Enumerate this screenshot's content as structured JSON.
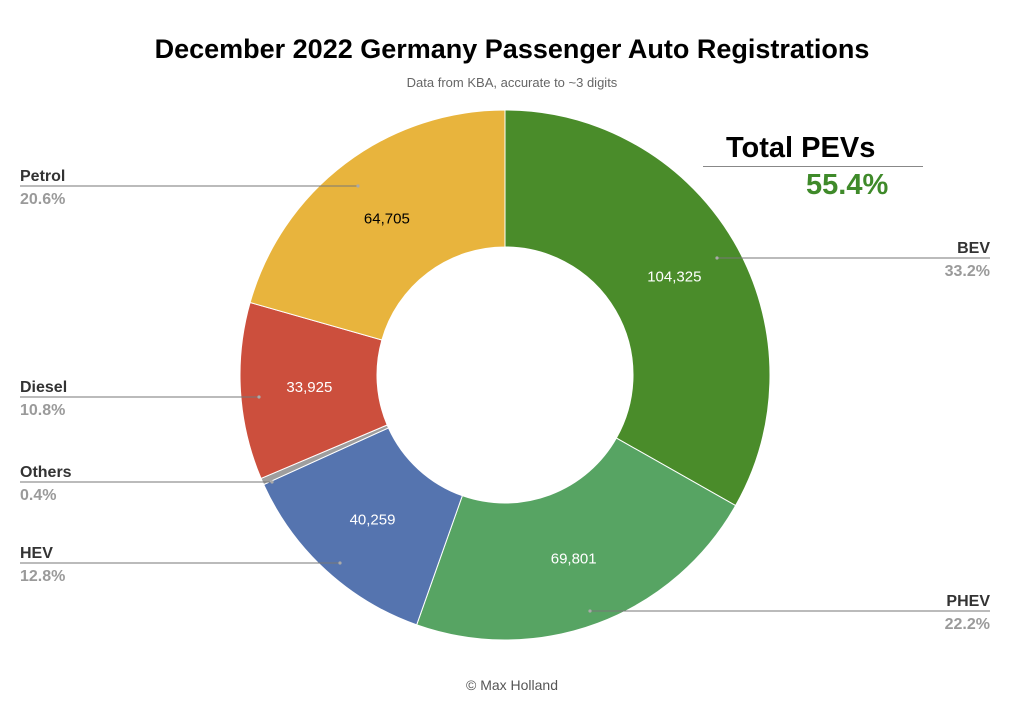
{
  "chart_data": {
    "type": "pie",
    "variant": "donut",
    "title": "December 2022 Germany Passenger Auto Registrations",
    "subtitle": "Data from KBA, accurate to ~3 digits",
    "legend": "none",
    "slices": [
      {
        "name": "BEV",
        "value": 104325,
        "value_label": "104,325",
        "percent": "33.2%",
        "color": "#4a8c2a",
        "label_color": "#ffffff"
      },
      {
        "name": "PHEV",
        "value": 69801,
        "value_label": "69,801",
        "percent": "22.2%",
        "color": "#57a463",
        "label_color": "#ffffff"
      },
      {
        "name": "HEV",
        "value": 40259,
        "value_label": "40,259",
        "percent": "12.8%",
        "color": "#5574af",
        "label_color": "#ffffff"
      },
      {
        "name": "Others",
        "value": 1250,
        "value_label": "",
        "percent": "0.4%",
        "color": "#9e9e9e",
        "label_color": "#ffffff"
      },
      {
        "name": "Diesel",
        "value": 33925,
        "value_label": "33,925",
        "percent": "10.8%",
        "color": "#cc4f3d",
        "label_color": "#ffffff"
      },
      {
        "name": "Petrol",
        "value": 64705,
        "value_label": "64,705",
        "percent": "20.6%",
        "color": "#e8b43d",
        "label_color": "#000000"
      }
    ]
  },
  "annotation": {
    "title": "Total PEVs",
    "value": "55.4%",
    "color": "#3f8a2a"
  },
  "credit": "© Max Holland"
}
